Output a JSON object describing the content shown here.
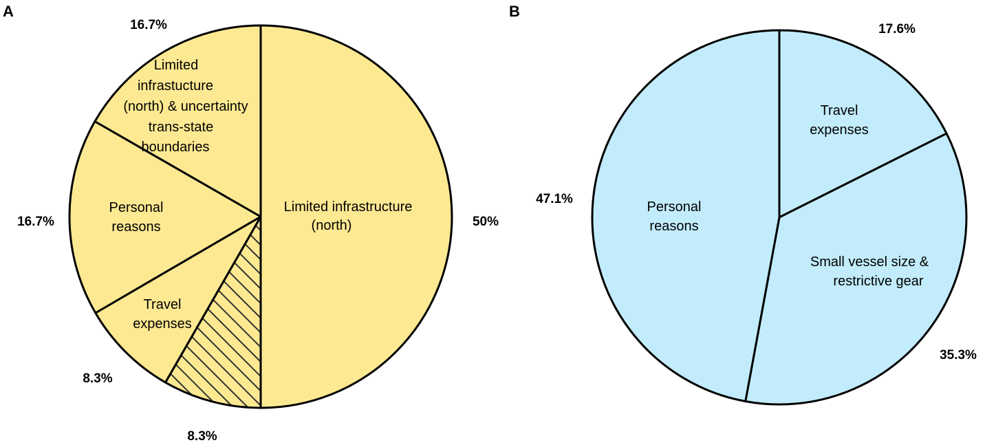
{
  "colors": {
    "panel_a_fill": "#fde992",
    "panel_b_fill": "#c2ecfb",
    "stroke": "#000000",
    "hatch": "#333333"
  },
  "chart_data": [
    {
      "type": "pie",
      "panel": "A",
      "start": "top",
      "direction": "clockwise",
      "slices": [
        {
          "label": "Limited infrastructure (north)",
          "value": 50,
          "value_label": "50%",
          "hatched": false
        },
        {
          "label": "",
          "value": 8.3,
          "value_label": "8.3%",
          "hatched": true
        },
        {
          "label": "Travel expenses",
          "value": 8.3,
          "value_label": "8.3%",
          "hatched": false
        },
        {
          "label": "Personal reasons",
          "value": 16.7,
          "value_label": "16.7%",
          "hatched": false
        },
        {
          "label": "Limited infrastucture (north) & uncertainty trans-state boundaries",
          "value": 16.7,
          "value_label": "16.7%",
          "hatched": false
        }
      ]
    },
    {
      "type": "pie",
      "panel": "B",
      "start": "top",
      "direction": "clockwise",
      "slices": [
        {
          "label": "Travel expenses",
          "value": 17.6,
          "value_label": "17.6%",
          "hatched": false
        },
        {
          "label": "Small vessel size & restrictive gear",
          "value": 35.3,
          "value_label": "35.3%",
          "hatched": false
        },
        {
          "label": "Personal reasons",
          "value": 47.1,
          "value_label": "47.1%",
          "hatched": false
        }
      ]
    }
  ]
}
